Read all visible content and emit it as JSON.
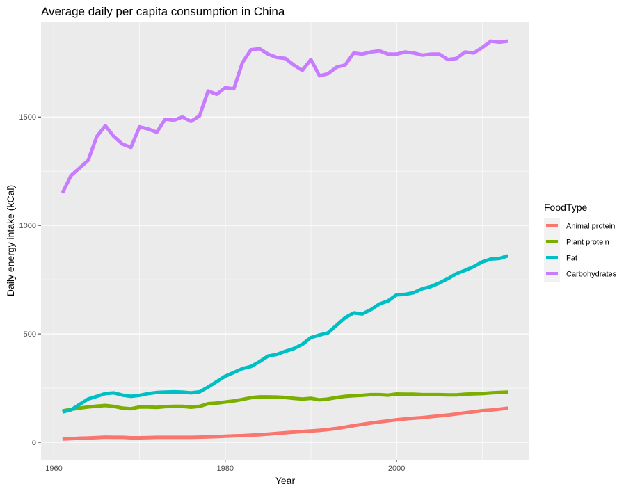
{
  "chart_data": {
    "type": "line",
    "title": "Average daily per capita consumption in China",
    "xlabel": "Year",
    "ylabel": "Daily energy intake (kCal)",
    "xlim": [
      1958.5,
      2015.5
    ],
    "ylim": [
      -80,
      1940
    ],
    "x_ticks": [
      1960,
      1980,
      2000
    ],
    "x_tick_labels": [
      "1960",
      "1980",
      "2000"
    ],
    "y_ticks": [
      0,
      500,
      1000,
      1500
    ],
    "y_tick_labels": [
      "0",
      "500",
      "1000",
      "1500"
    ],
    "grid": true,
    "legend_title": "FoodType",
    "legend_position": "right",
    "x": [
      1961,
      1962,
      1963,
      1964,
      1965,
      1966,
      1967,
      1968,
      1969,
      1970,
      1971,
      1972,
      1973,
      1974,
      1975,
      1976,
      1977,
      1978,
      1979,
      1980,
      1981,
      1982,
      1983,
      1984,
      1985,
      1986,
      1987,
      1988,
      1989,
      1990,
      1991,
      1992,
      1993,
      1994,
      1995,
      1996,
      1997,
      1998,
      1999,
      2000,
      2001,
      2002,
      2003,
      2004,
      2005,
      2006,
      2007,
      2008,
      2009,
      2010,
      2011,
      2012,
      2013
    ],
    "series": [
      {
        "name": "Animal protein",
        "color": "#F8766D",
        "values": [
          15,
          17,
          19,
          20,
          22,
          24,
          23,
          23,
          21,
          21,
          22,
          23,
          23,
          23,
          23,
          23,
          24,
          25,
          26,
          28,
          30,
          31,
          33,
          35,
          38,
          41,
          44,
          47,
          50,
          52,
          55,
          59,
          64,
          70,
          77,
          83,
          89,
          94,
          99,
          104,
          108,
          111,
          114,
          118,
          122,
          126,
          131,
          136,
          141,
          146,
          149,
          153,
          158
        ]
      },
      {
        "name": "Plant protein",
        "color": "#7CAE00",
        "values": [
          145,
          152,
          158,
          163,
          167,
          170,
          166,
          158,
          155,
          163,
          163,
          161,
          165,
          166,
          166,
          162,
          166,
          178,
          181,
          186,
          191,
          198,
          206,
          210,
          210,
          209,
          207,
          203,
          200,
          203,
          196,
          200,
          207,
          212,
          215,
          217,
          220,
          220,
          218,
          223,
          222,
          222,
          220,
          220,
          220,
          219,
          219,
          222,
          224,
          225,
          228,
          230,
          232
        ]
      },
      {
        "name": "Fat",
        "color": "#00BFC4",
        "values": [
          140,
          150,
          175,
          200,
          212,
          225,
          228,
          218,
          212,
          217,
          225,
          230,
          232,
          233,
          232,
          228,
          233,
          255,
          280,
          305,
          322,
          340,
          350,
          372,
          398,
          405,
          420,
          432,
          452,
          483,
          495,
          505,
          540,
          575,
          597,
          592,
          612,
          638,
          652,
          680,
          682,
          690,
          708,
          718,
          735,
          755,
          778,
          793,
          810,
          832,
          845,
          848,
          860
        ]
      },
      {
        "name": "Carbohydrates",
        "color": "#C77CFF",
        "values": [
          1150,
          1230,
          1265,
          1300,
          1410,
          1460,
          1410,
          1375,
          1360,
          1455,
          1445,
          1430,
          1490,
          1485,
          1500,
          1480,
          1505,
          1620,
          1605,
          1635,
          1630,
          1750,
          1810,
          1815,
          1790,
          1775,
          1770,
          1740,
          1715,
          1765,
          1690,
          1700,
          1730,
          1740,
          1795,
          1790,
          1800,
          1805,
          1790,
          1790,
          1800,
          1795,
          1785,
          1790,
          1790,
          1765,
          1770,
          1800,
          1795,
          1820,
          1850,
          1845,
          1850
        ]
      }
    ]
  }
}
